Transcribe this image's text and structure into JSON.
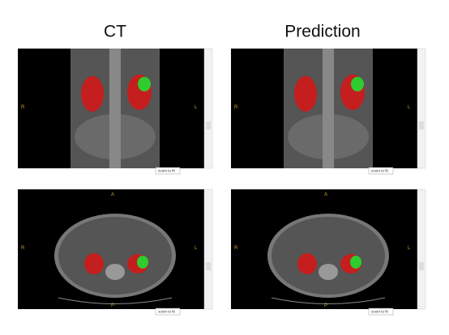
{
  "columns": [
    {
      "title": "CT"
    },
    {
      "title": "Prediction"
    }
  ],
  "orientation": {
    "left": "R",
    "right": "L",
    "anterior": "A",
    "posterior": "P"
  },
  "button": "zoom to fit"
}
